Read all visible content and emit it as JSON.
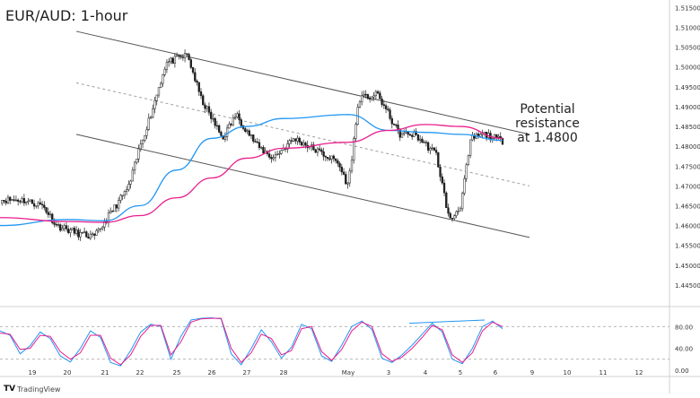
{
  "chart_data": [
    {
      "type": "candlestick",
      "title": "EUR/AUD: 1-hour",
      "annotation": [
        "Potential resistance",
        "at 1.4800"
      ],
      "ylim": [
        1.44,
        1.516
      ],
      "y_ticks": [
        "1.51500",
        "1.51000",
        "1.50500",
        "1.50000",
        "1.49500",
        "1.49000",
        "1.48500",
        "1.48000",
        "1.47500",
        "1.47000",
        "1.46500",
        "1.46000",
        "1.45500",
        "1.45000",
        "1.44500"
      ],
      "x_ticks": [
        "19",
        "20",
        "21",
        "22",
        "25",
        "26",
        "27",
        "28",
        "May",
        "3",
        "4",
        "5",
        "6",
        "9",
        "10",
        "11",
        "12"
      ],
      "price_path": [
        [
          "19",
          1.4665
        ],
        [
          "19",
          1.465
        ],
        [
          "20",
          1.46
        ],
        [
          "20",
          1.458
        ],
        [
          "21",
          1.457
        ],
        [
          "22",
          1.47
        ],
        [
          "22",
          1.48
        ],
        [
          "22",
          1.488
        ],
        [
          "25",
          1.501
        ],
        [
          "25",
          1.503
        ],
        [
          "26",
          1.492
        ],
        [
          "26",
          1.482
        ],
        [
          "27",
          1.488
        ],
        [
          "27",
          1.48
        ],
        [
          "28",
          1.477
        ],
        [
          "28",
          1.482
        ],
        [
          "May",
          1.476
        ],
        [
          "May",
          1.47
        ],
        [
          "May",
          1.492
        ],
        [
          "3",
          1.493
        ],
        [
          "3",
          1.488
        ],
        [
          "3",
          1.483
        ],
        [
          "4",
          1.483
        ],
        [
          "4",
          1.478
        ],
        [
          "5",
          1.461
        ],
        [
          "5",
          1.465
        ],
        [
          "5",
          1.482
        ],
        [
          "6",
          1.483
        ],
        [
          "6",
          1.481
        ]
      ],
      "series": [
        {
          "name": "",
          "color": "#2196f3",
          "points": [
            [
              "19",
              1.46
            ],
            [
              "20",
              1.4615
            ],
            [
              "21",
              1.4612
            ],
            [
              "22",
              1.465
            ],
            [
              "25",
              1.474
            ],
            [
              "26",
              1.482
            ],
            [
              "27",
              1.485
            ],
            [
              "28",
              1.487
            ],
            [
              "May",
              1.488
            ],
            [
              "3",
              1.484
            ],
            [
              "4",
              1.4835
            ],
            [
              "5",
              1.483
            ],
            [
              "6",
              1.4815
            ]
          ]
        },
        {
          "name": "",
          "color": "#e91e8c",
          "points": [
            [
              "19",
              1.462
            ],
            [
              "20",
              1.461
            ],
            [
              "21",
              1.4608
            ],
            [
              "22",
              1.4625
            ],
            [
              "25",
              1.467
            ],
            [
              "26",
              1.472
            ],
            [
              "27",
              1.477
            ],
            [
              "28",
              1.4795
            ],
            [
              "May",
              1.481
            ],
            [
              "3",
              1.484
            ],
            [
              "4",
              1.4855
            ],
            [
              "5",
              1.485
            ],
            [
              "6",
              1.482
            ]
          ]
        }
      ],
      "channel": {
        "color": "#555555",
        "upper": [
          [
            "20",
            1.509
          ],
          [
            "6",
            1.483
          ]
        ],
        "middle": [
          [
            "20",
            1.496
          ],
          [
            "6",
            1.47
          ]
        ],
        "lower": [
          [
            "20",
            1.483
          ],
          [
            "6",
            1.457
          ]
        ]
      }
    },
    {
      "type": "line",
      "title": "",
      "ylim": [
        -5,
        110
      ],
      "y_ticks": [
        "80.00",
        "40.00",
        "0.00"
      ],
      "levels": [
        80,
        20
      ],
      "series": [
        {
          "name": "",
          "color": "#2196f3",
          "values": [
            72,
            64,
            30,
            45,
            70,
            58,
            26,
            15,
            40,
            72,
            60,
            14,
            8,
            36,
            70,
            84,
            80,
            20,
            62,
            92,
            95,
            96,
            94,
            30,
            10,
            40,
            74,
            52,
            22,
            42,
            84,
            76,
            26,
            16,
            46,
            80,
            90,
            75,
            22,
            14,
            28,
            46,
            66,
            86,
            70,
            20,
            12,
            40,
            80,
            90,
            76
          ]
        },
        {
          "name": "",
          "color": "#e91e8c",
          "values": [
            68,
            66,
            38,
            40,
            64,
            62,
            34,
            20,
            32,
            64,
            64,
            22,
            10,
            28,
            62,
            82,
            82,
            28,
            52,
            88,
            94,
            95,
            95,
            40,
            14,
            32,
            66,
            58,
            28,
            36,
            76,
            80,
            34,
            18,
            38,
            72,
            88,
            80,
            30,
            16,
            24,
            40,
            60,
            82,
            74,
            28,
            14,
            32,
            72,
            88,
            80
          ]
        }
      ],
      "divergence_line": {
        "color": "#2196f3",
        "from": 86,
        "to": 92
      }
    }
  ],
  "watermark": "TradingView",
  "colors": {
    "bull": "#1e1e1e",
    "bear": "#1e1e1e",
    "grid_level": "#9e9e9e",
    "axis_text": "#333333"
  }
}
